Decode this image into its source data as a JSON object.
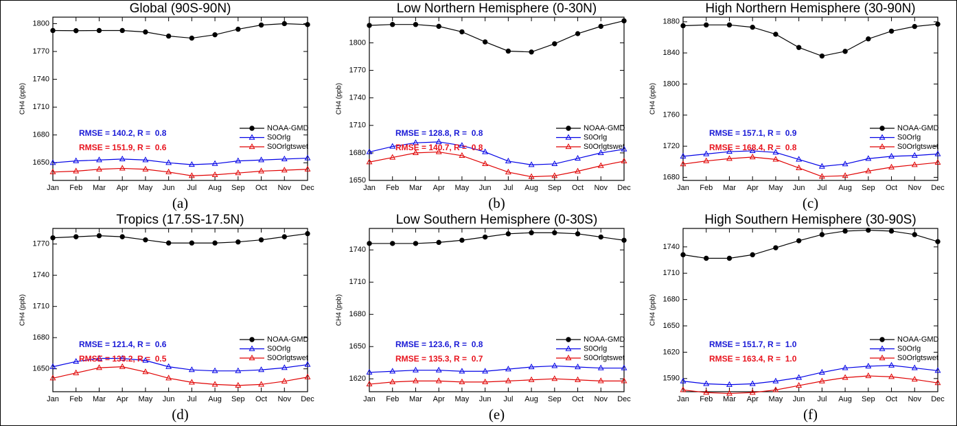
{
  "chart_data": [
    {
      "type": "line",
      "title": "Global (90S-90N)",
      "caption": "(a)",
      "y_label": "CH4 (ppb)",
      "categories": [
        "Jan",
        "Feb",
        "Mar",
        "Apr",
        "May",
        "Jun",
        "Jul",
        "Aug",
        "Sep",
        "Oct",
        "Nov",
        "Dec"
      ],
      "series": [
        {
          "name": "NOAA-GMD",
          "color": "#000000",
          "marker": "circle",
          "values": [
            1792.6,
            1792.4,
            1792.6,
            1792.6,
            1791,
            1786.6,
            1784.4,
            1788,
            1794,
            1798.5,
            1800,
            1799
          ]
        },
        {
          "name": "S0Orlg",
          "color": "#0000e6",
          "marker": "triangle",
          "values": [
            1650,
            1652,
            1653,
            1654,
            1653,
            1650,
            1648,
            1649,
            1652,
            1653,
            1654,
            1655
          ]
        },
        {
          "name": "S0Orlgtswet",
          "color": "#e00000",
          "marker": "triangle",
          "values": [
            1640,
            1641,
            1643,
            1644,
            1643,
            1640,
            1636,
            1637,
            1639,
            1641,
            1642,
            1643
          ]
        }
      ],
      "annotations": [
        {
          "text": "RMSE = 140.2, R =  0.8",
          "color": "#1a1ad6"
        },
        {
          "text": "RMSE = 151.9, R =  0.6",
          "color": "#e8141e"
        }
      ],
      "ylim": [
        1631,
        1807
      ],
      "yticks": [
        1650,
        1680,
        1710,
        1740,
        1770,
        1800
      ],
      "legend": "lower-right"
    },
    {
      "type": "line",
      "title": "Low Northern Hemisphere (0-30N)",
      "caption": "(b)",
      "y_label": "CH4 (ppb)",
      "categories": [
        "Jan",
        "Feb",
        "Mar",
        "Apr",
        "May",
        "Jun",
        "Jul",
        "Aug",
        "Sep",
        "Oct",
        "Nov",
        "Dec"
      ],
      "series": [
        {
          "name": "NOAA-GMD",
          "color": "#000000",
          "marker": "circle",
          "values": [
            1819,
            1820,
            1820,
            1818,
            1812,
            1801,
            1791,
            1790,
            1799,
            1810,
            1818,
            1824
          ]
        },
        {
          "name": "S0Orlg",
          "color": "#0000e6",
          "marker": "triangle",
          "values": [
            1681,
            1687,
            1691,
            1692,
            1688,
            1681,
            1671,
            1667,
            1668,
            1674,
            1680,
            1684
          ]
        },
        {
          "name": "S0Orlgtswet",
          "color": "#e00000",
          "marker": "triangle",
          "values": [
            1670,
            1675,
            1680,
            1681,
            1677,
            1668,
            1659,
            1654,
            1655,
            1660,
            1666,
            1671
          ]
        }
      ],
      "annotations": [
        {
          "text": "RMSE = 128.8, R =  0.8",
          "color": "#1a1ad6"
        },
        {
          "text": "RMSE = 140.7, R =  0.8",
          "color": "#e8141e"
        }
      ],
      "ylim": [
        1650,
        1828
      ],
      "yticks": [
        1650,
        1680,
        1710,
        1740,
        1770,
        1800
      ],
      "legend": "lower-right"
    },
    {
      "type": "line",
      "title": "High Northern Hemisphere (30-90N)",
      "caption": "(c)",
      "y_label": "CH4 (ppb)",
      "categories": [
        "Jan",
        "Feb",
        "Mar",
        "Apr",
        "May",
        "Jun",
        "Jul",
        "Aug",
        "Sep",
        "Oct",
        "Nov",
        "Dec"
      ],
      "series": [
        {
          "name": "NOAA-GMD",
          "color": "#000000",
          "marker": "circle",
          "values": [
            1875,
            1876,
            1876,
            1873,
            1864,
            1847,
            1836,
            1842,
            1858,
            1868,
            1874,
            1877
          ]
        },
        {
          "name": "S0Orlg",
          "color": "#0000e6",
          "marker": "triangle",
          "values": [
            1707,
            1710,
            1713,
            1714,
            1712,
            1703,
            1694,
            1697,
            1704,
            1707,
            1708,
            1710
          ]
        },
        {
          "name": "S0Orlgtswet",
          "color": "#e00000",
          "marker": "triangle",
          "values": [
            1697,
            1701,
            1704,
            1706,
            1703,
            1692,
            1681,
            1682,
            1688,
            1693,
            1696,
            1699
          ]
        }
      ],
      "annotations": [
        {
          "text": "RMSE = 157.1, R =  0.9",
          "color": "#1a1ad6"
        },
        {
          "text": "RMSE = 168.4, R =  0.8",
          "color": "#e8141e"
        }
      ],
      "ylim": [
        1676,
        1886
      ],
      "yticks": [
        1680,
        1720,
        1760,
        1800,
        1840,
        1880
      ],
      "legend": "lower-right"
    },
    {
      "type": "line",
      "title": "Tropics (17.5S-17.5N)",
      "caption": "(d)",
      "y_label": "CH4 (ppb)",
      "categories": [
        "Jan",
        "Feb",
        "Mar",
        "Apr",
        "May",
        "Jun",
        "Jul",
        "Aug",
        "Sep",
        "Oct",
        "Nov",
        "Dec"
      ],
      "series": [
        {
          "name": "NOAA-GMD",
          "color": "#000000",
          "marker": "circle",
          "values": [
            1776,
            1777,
            1778,
            1777,
            1774,
            1771,
            1771,
            1771,
            1772,
            1774,
            1777,
            1780
          ]
        },
        {
          "name": "S0Orlg",
          "color": "#0000e6",
          "marker": "triangle",
          "values": [
            1652,
            1657,
            1660,
            1660,
            1658,
            1652,
            1649,
            1648,
            1648,
            1649,
            1651,
            1654
          ]
        },
        {
          "name": "S0Orlgtswet",
          "color": "#e00000",
          "marker": "triangle",
          "values": [
            1641,
            1646,
            1651,
            1652,
            1647,
            1641,
            1637,
            1635,
            1634,
            1635,
            1638,
            1642
          ]
        }
      ],
      "annotations": [
        {
          "text": "RMSE = 121.4, R =  0.6",
          "color": "#1a1ad6"
        },
        {
          "text": "RMSE = 133.2, R =  0.5",
          "color": "#e8141e"
        }
      ],
      "ylim": [
        1628,
        1785
      ],
      "yticks": [
        1650,
        1680,
        1710,
        1740,
        1770
      ],
      "legend": "lower-right"
    },
    {
      "type": "line",
      "title": "Low Southern Hemisphere (0-30S)",
      "caption": "(e)",
      "y_label": "CH4 (ppb)",
      "categories": [
        "Jan",
        "Feb",
        "Mar",
        "Apr",
        "May",
        "Jun",
        "Jul",
        "Aug",
        "Sep",
        "Oct",
        "Nov",
        "Dec"
      ],
      "series": [
        {
          "name": "NOAA-GMD",
          "color": "#000000",
          "marker": "circle",
          "values": [
            1746,
            1746,
            1746,
            1747,
            1749,
            1752,
            1755,
            1756,
            1756,
            1755,
            1752,
            1749
          ]
        },
        {
          "name": "S0Orlg",
          "color": "#0000e6",
          "marker": "triangle",
          "values": [
            1626,
            1627,
            1628,
            1628,
            1627,
            1627,
            1629,
            1631,
            1632,
            1631,
            1630,
            1630
          ]
        },
        {
          "name": "S0Orlgtswet",
          "color": "#e00000",
          "marker": "triangle",
          "values": [
            1615,
            1617,
            1618,
            1618,
            1617,
            1617,
            1618,
            1619,
            1620,
            1619,
            1618,
            1618
          ]
        }
      ],
      "annotations": [
        {
          "text": "RMSE = 123.6, R =  0.8",
          "color": "#1a1ad6"
        },
        {
          "text": "RMSE = 135.3, R =  0.7",
          "color": "#e8141e"
        }
      ],
      "ylim": [
        1608,
        1760
      ],
      "yticks": [
        1620,
        1650,
        1680,
        1710,
        1740
      ],
      "legend": "lower-right"
    },
    {
      "type": "line",
      "title": "High Southern Hemisphere (30-90S)",
      "caption": "(f)",
      "y_label": "CH4 (ppb)",
      "categories": [
        "Jan",
        "Feb",
        "Mar",
        "Apr",
        "May",
        "Jun",
        "Jul",
        "Aug",
        "Sep",
        "Oct",
        "Nov",
        "Dec"
      ],
      "series": [
        {
          "name": "NOAA-GMD",
          "color": "#000000",
          "marker": "circle",
          "values": [
            1731,
            1727,
            1727,
            1731,
            1739,
            1747,
            1754,
            1758,
            1759,
            1758,
            1754,
            1746
          ]
        },
        {
          "name": "S0Orlg",
          "color": "#0000e6",
          "marker": "triangle",
          "values": [
            1587,
            1584,
            1583,
            1584,
            1587,
            1591,
            1597,
            1602,
            1604,
            1605,
            1602,
            1599
          ]
        },
        {
          "name": "S0Orlgtswet",
          "color": "#e00000",
          "marker": "triangle",
          "values": [
            1577,
            1574,
            1573,
            1574,
            1577,
            1582,
            1587,
            1591,
            1593,
            1592,
            1589,
            1585
          ]
        }
      ],
      "annotations": [
        {
          "text": "RMSE = 151.7, R =  1.0",
          "color": "#1a1ad6"
        },
        {
          "text": "RMSE = 163.4, R =  1.0",
          "color": "#e8141e"
        }
      ],
      "ylim": [
        1575,
        1761
      ],
      "yticks": [
        1590,
        1620,
        1650,
        1680,
        1710,
        1740
      ],
      "legend": "lower-right"
    }
  ]
}
